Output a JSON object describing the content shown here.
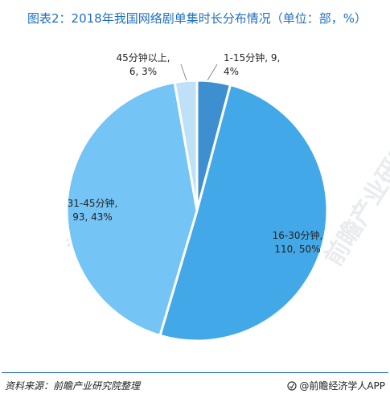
{
  "title": "图表2：2018年我国网络剧单集时长分布情况（单位：部，%）",
  "source": "资料来源：前瞻产业研究院整理",
  "brand": "@前瞻经济学人APP",
  "watermark": "前瞻产业研究院",
  "colors": {
    "title": "#1f6fbf",
    "line": "#1f6fbf"
  },
  "chart_data": {
    "type": "pie",
    "title": "图表2：2018年我国网络剧单集时长分布情况（单位：部，%）",
    "slices": [
      {
        "name": "1-15分钟",
        "value": 9,
        "percent": 4,
        "color": "#3d8fcf",
        "label_line1": "1-15分钟, 9,",
        "label_line2": "4%"
      },
      {
        "name": "16-30分钟",
        "value": 110,
        "percent": 50,
        "color": "#42a8e8",
        "label_line1": "16-30分钟,",
        "label_line2": "110, 50%"
      },
      {
        "name": "31-45分钟",
        "value": 93,
        "percent": 43,
        "color": "#74c4f5",
        "label_line1": "31-45分钟,",
        "label_line2": "93, 43%"
      },
      {
        "name": "45分钟以上",
        "value": 6,
        "percent": 3,
        "color": "#bfe1f8",
        "label_line1": "45分钟以上,",
        "label_line2": "6, 3%"
      }
    ]
  }
}
